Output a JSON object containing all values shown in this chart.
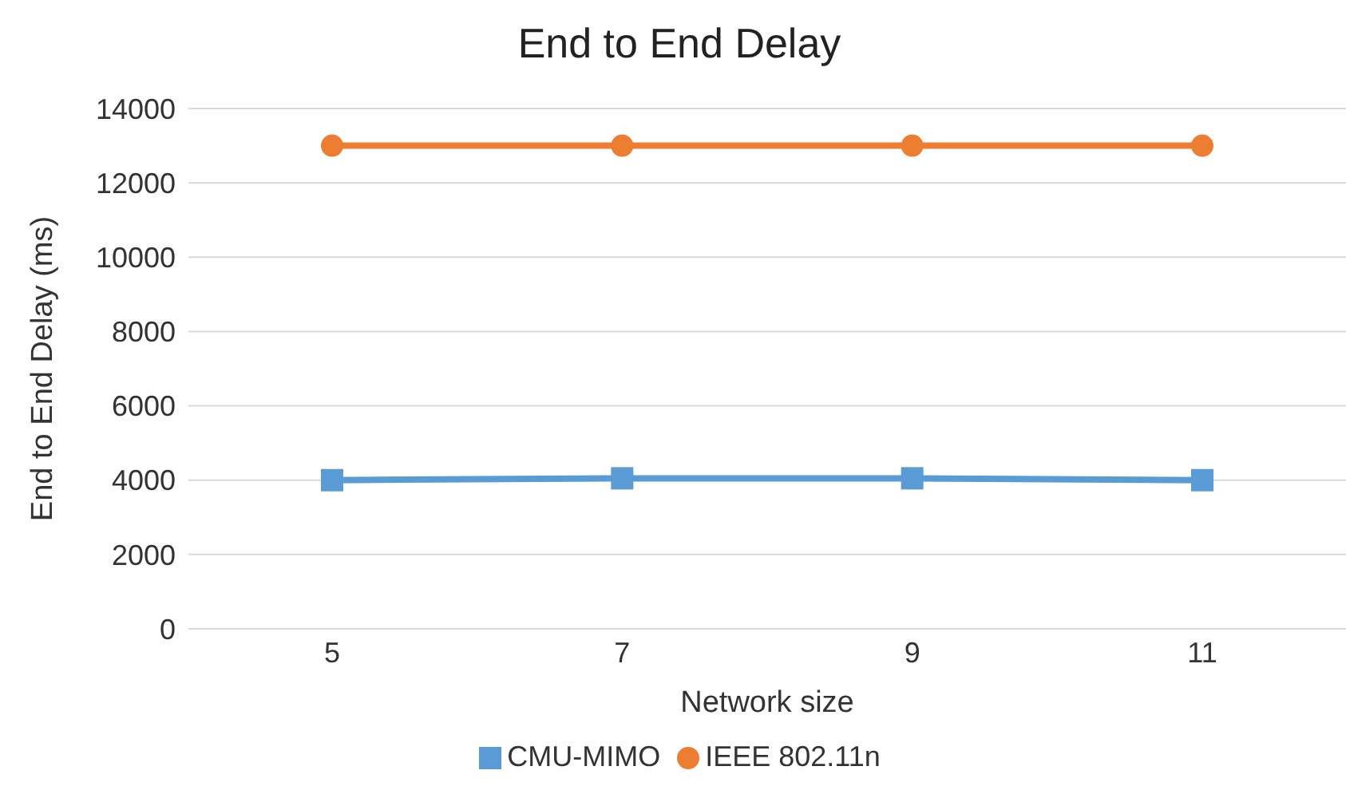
{
  "chart_data": {
    "type": "line",
    "title": "End to End Delay",
    "xlabel": "Network size",
    "ylabel": "End to End Delay (ms)",
    "categories": [
      "5",
      "7",
      "9",
      "11"
    ],
    "series": [
      {
        "name": "CMU-MIMO",
        "color": "#5b9bd5",
        "marker": "square",
        "values": [
          4000,
          4050,
          4050,
          4000
        ]
      },
      {
        "name": "IEEE 802.11n",
        "color": "#ed7d31",
        "marker": "circle",
        "values": [
          13000,
          13000,
          13000,
          13000
        ]
      }
    ],
    "ylim": [
      0,
      14000
    ],
    "yticks": [
      0,
      2000,
      4000,
      6000,
      8000,
      10000,
      12000,
      14000
    ],
    "grid": "y",
    "legend": "bottom"
  }
}
